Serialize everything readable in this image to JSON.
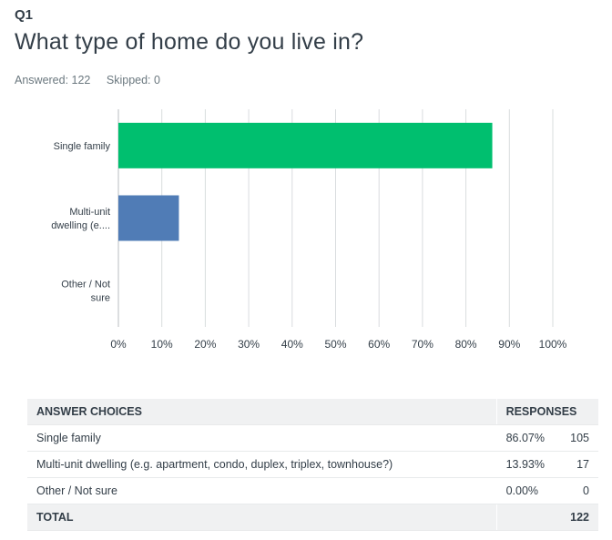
{
  "question": {
    "number": "Q1",
    "title": "What type of home do you live in?",
    "answered": "Answered: 122",
    "skipped": "Skipped: 0"
  },
  "chart_data": {
    "type": "bar",
    "orientation": "horizontal",
    "categories": [
      "Single family",
      "Multi-unit dwelling (e....",
      "Other / Not sure"
    ],
    "category_lines": [
      [
        "Single family"
      ],
      [
        "Multi-unit",
        "dwelling (e...."
      ],
      [
        "Other / Not",
        "sure"
      ]
    ],
    "values": [
      86.07,
      13.93,
      0.0
    ],
    "bar_colors": [
      "#00bf6f",
      "#507cb6",
      "#f9be00"
    ],
    "xlim": [
      0,
      100
    ],
    "xticks": [
      0,
      10,
      20,
      30,
      40,
      50,
      60,
      70,
      80,
      90,
      100
    ],
    "xtick_labels": [
      "0%",
      "10%",
      "20%",
      "30%",
      "40%",
      "50%",
      "60%",
      "70%",
      "80%",
      "90%",
      "100%"
    ],
    "grid": true
  },
  "table": {
    "headers": {
      "choice": "ANSWER CHOICES",
      "responses": "RESPONSES"
    },
    "rows": [
      {
        "choice": "Single family",
        "pct": "86.07%",
        "count": "105"
      },
      {
        "choice": "Multi-unit dwelling (e.g. apartment, condo, duplex, triplex, townhouse?)",
        "pct": "13.93%",
        "count": "17"
      },
      {
        "choice": "Other / Not sure",
        "pct": "0.00%",
        "count": "0"
      }
    ],
    "total_label": "TOTAL",
    "total_count": "122"
  },
  "colors": {
    "text": "#333e48",
    "muted": "#6b787f",
    "grid": "#d9dcde",
    "header_bg": "#f0f1f2"
  }
}
